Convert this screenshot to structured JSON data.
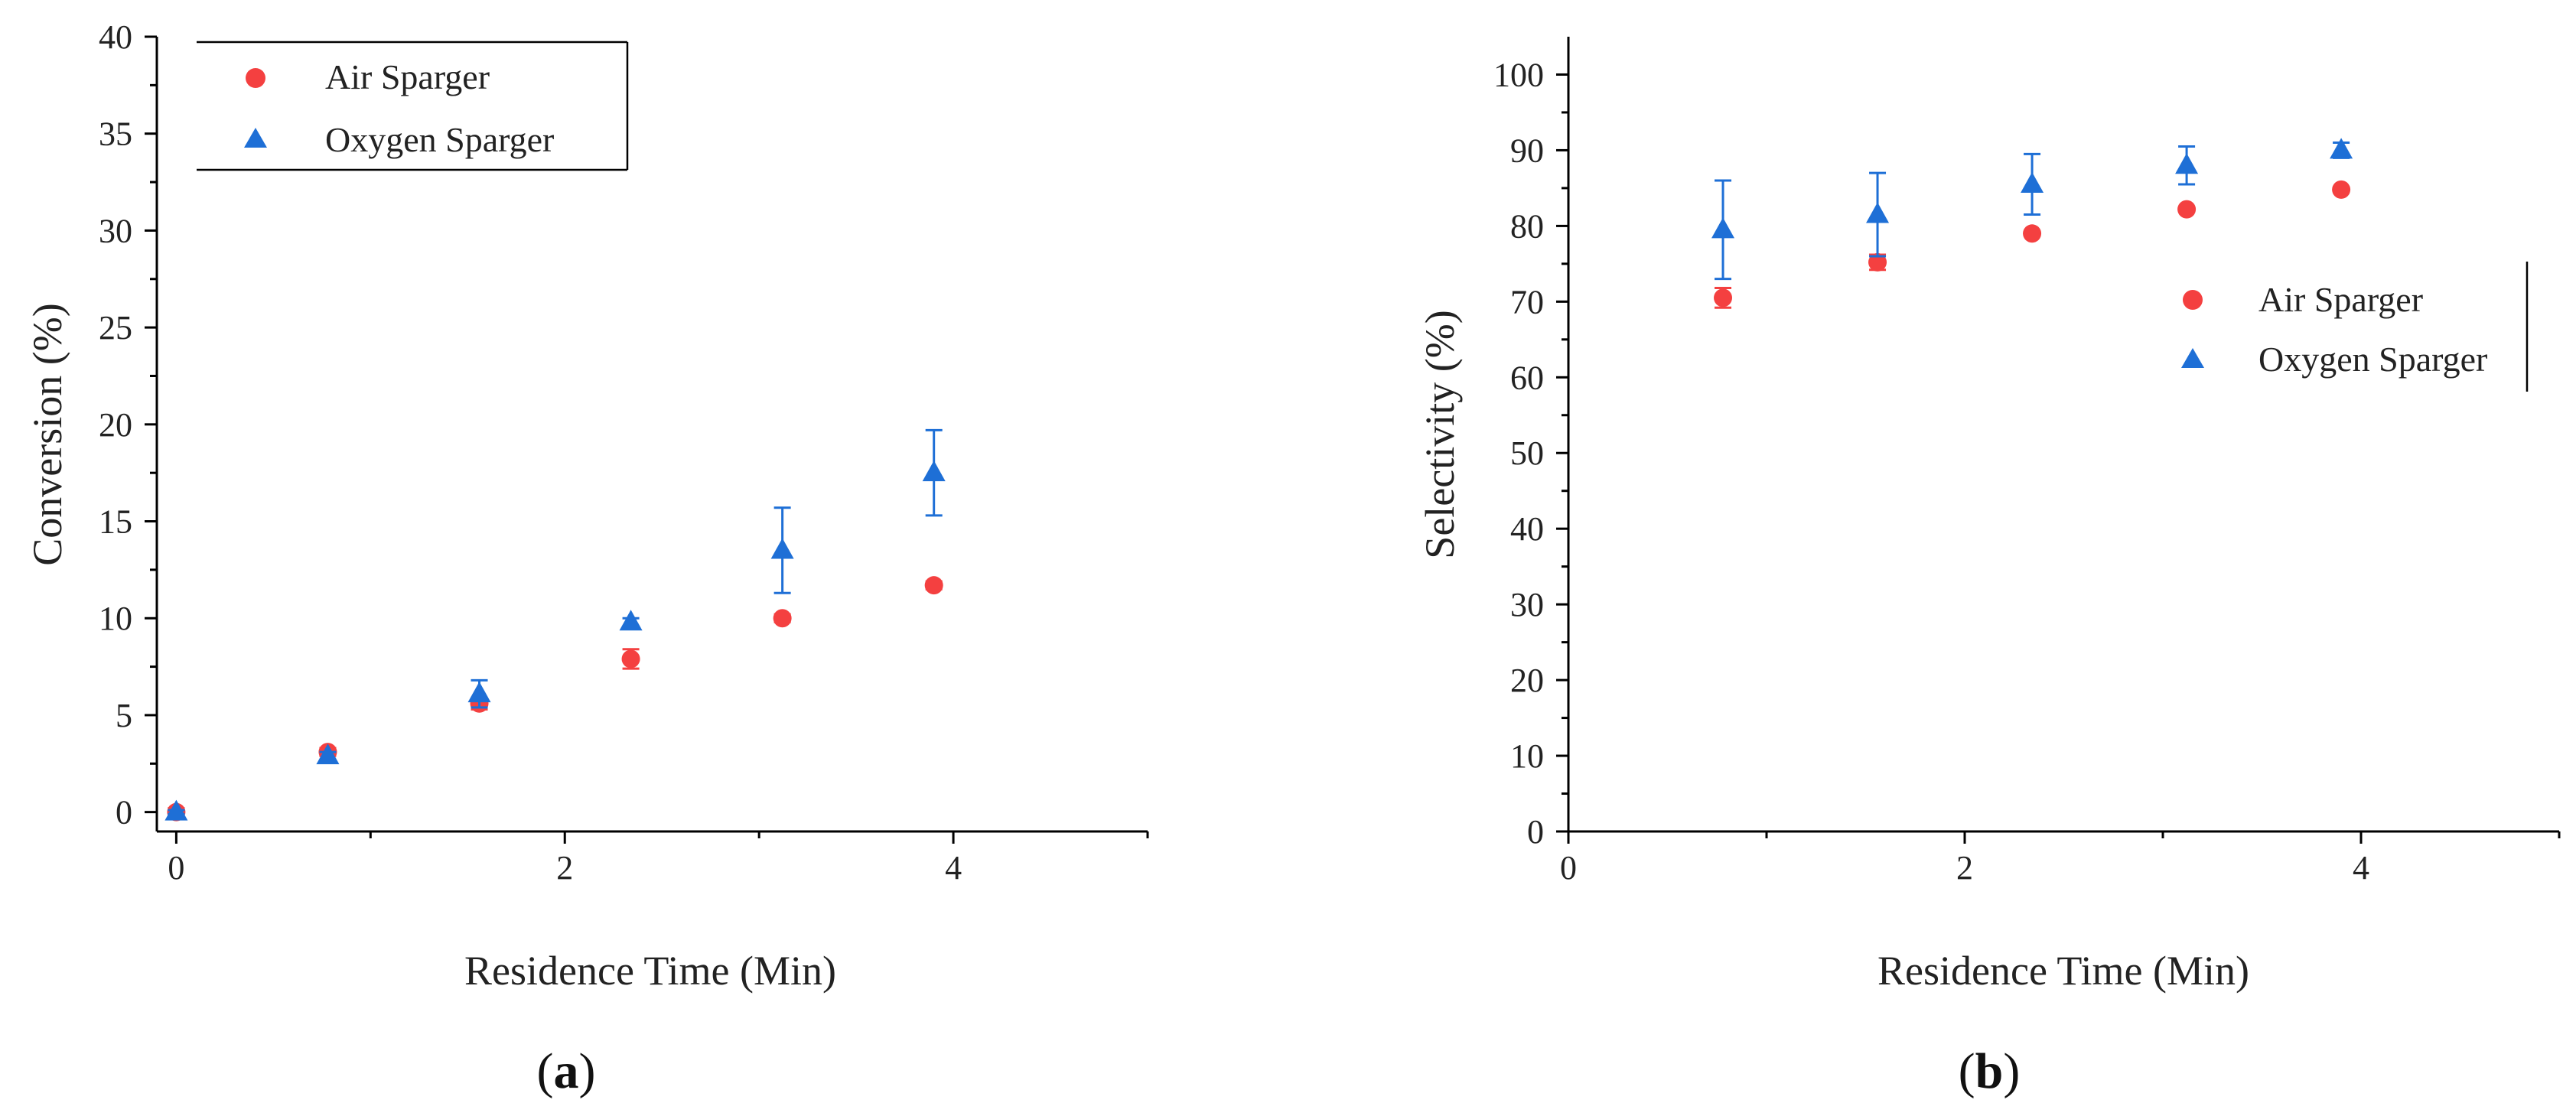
{
  "colors": {
    "air": "#f44040",
    "oxygen": "#1e6fd6",
    "axis": "#000000",
    "text": "#222222"
  },
  "chart_data": [
    {
      "id": "a",
      "type": "scatter",
      "panel_label": "a",
      "xlabel": "Residence Time (Min)",
      "ylabel": "Conversion (%)",
      "xlim": [
        -0.1,
        5
      ],
      "ylim": [
        -1,
        40
      ],
      "xticks": [
        0,
        2,
        4
      ],
      "xticks_minor": [
        1,
        3,
        5
      ],
      "yticks": [
        0,
        5,
        10,
        15,
        20,
        25,
        30,
        35,
        40
      ],
      "legend_position": "top-left",
      "series": [
        {
          "name": "Air Sparger",
          "marker": "circle",
          "color_key": "air",
          "points": [
            {
              "x": 0,
              "y": 0.0,
              "err": 0.2
            },
            {
              "x": 0.78,
              "y": 3.1,
              "err": 0.2
            },
            {
              "x": 1.56,
              "y": 5.6,
              "err": 0.3
            },
            {
              "x": 2.34,
              "y": 7.9,
              "err": 0.5
            },
            {
              "x": 3.12,
              "y": 10.0,
              "err": 0.2
            },
            {
              "x": 3.9,
              "y": 11.7,
              "err": 0.2
            }
          ]
        },
        {
          "name": "Oxygen Sparger",
          "marker": "triangle",
          "color_key": "oxygen",
          "points": [
            {
              "x": 0,
              "y": 0.0,
              "err": 0.1
            },
            {
              "x": 0.78,
              "y": 2.9,
              "err": 0.2
            },
            {
              "x": 1.56,
              "y": 6.1,
              "err": 0.7
            },
            {
              "x": 2.34,
              "y": 9.8,
              "err": 0.2
            },
            {
              "x": 3.12,
              "y": 13.5,
              "err": 2.2
            },
            {
              "x": 3.9,
              "y": 17.5,
              "err": 2.2
            }
          ]
        }
      ]
    },
    {
      "id": "b",
      "type": "scatter",
      "panel_label": "b",
      "xlabel": "Residence Time (Min)",
      "ylabel": "Selectivity (%)",
      "xlim": [
        0,
        5
      ],
      "ylim": [
        0,
        105
      ],
      "xticks": [
        0,
        2,
        4
      ],
      "xticks_minor": [
        1,
        3,
        5
      ],
      "yticks": [
        0,
        10,
        20,
        30,
        40,
        50,
        60,
        70,
        80,
        90,
        100
      ],
      "legend_position": "right",
      "series": [
        {
          "name": "Air Sparger",
          "marker": "circle",
          "color_key": "air",
          "points": [
            {
              "x": 0.78,
              "y": 70.5,
              "err": 1.3
            },
            {
              "x": 1.56,
              "y": 75.2,
              "err": 1.0
            },
            {
              "x": 2.34,
              "y": 79.0,
              "err": 0.3
            },
            {
              "x": 3.12,
              "y": 82.2,
              "err": 0.3
            },
            {
              "x": 3.9,
              "y": 84.8,
              "err": 0.3
            }
          ]
        },
        {
          "name": "Oxygen Sparger",
          "marker": "triangle",
          "color_key": "oxygen",
          "points": [
            {
              "x": 0.78,
              "y": 79.5,
              "err": 6.5
            },
            {
              "x": 1.56,
              "y": 81.5,
              "err": 5.5
            },
            {
              "x": 2.34,
              "y": 85.5,
              "err": 4.0
            },
            {
              "x": 3.12,
              "y": 88.0,
              "err": 2.5
            },
            {
              "x": 3.9,
              "y": 90.0,
              "err": 1.0
            }
          ]
        }
      ]
    }
  ]
}
